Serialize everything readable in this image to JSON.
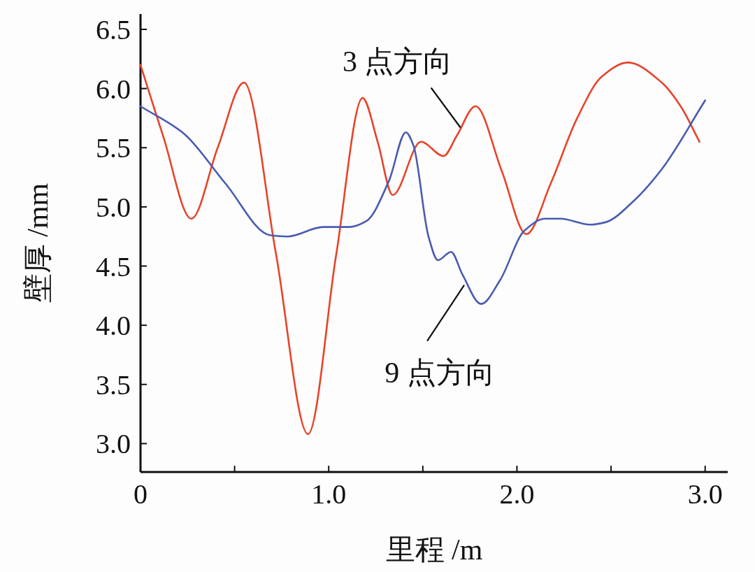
{
  "chart_data": {
    "type": "line",
    "xlabel": "里程 /m",
    "ylabel": "壁厚 /mm",
    "xlim": [
      0,
      3.12
    ],
    "ylim": [
      2.76,
      6.63
    ],
    "xticks": [
      0,
      {
        "value": 0.5,
        "label": null
      },
      {
        "value": 1,
        "label": "1.0"
      },
      {
        "value": 1.5,
        "label": null
      },
      {
        "value": 2,
        "label": "2.0"
      },
      {
        "value": 2.5,
        "label": null
      },
      {
        "value": 3,
        "label": "3.0"
      }
    ],
    "yticks": [
      {
        "value": 3,
        "label": "3.0"
      },
      3.5,
      {
        "value": 4,
        "label": "4.0"
      },
      4.5,
      {
        "value": 5,
        "label": "5.0"
      },
      5.5,
      {
        "value": 6,
        "label": "6.0"
      },
      6.5
    ],
    "grid": false,
    "marker": "none",
    "line_style": "solid",
    "series": [
      {
        "color": "#e8432a",
        "x": [
          0,
          0.12,
          0.27,
          0.41,
          0.55,
          0.72,
          0.89,
          1.04,
          1.18,
          1.26,
          1.34,
          1.49,
          1.61,
          1.68,
          1.78,
          1.92,
          2.05,
          2.18,
          2.32,
          2.45,
          2.59,
          2.77,
          2.87,
          2.97
        ],
        "values": [
          6.2,
          5.6,
          4.9,
          5.5,
          6.05,
          4.6,
          3.08,
          4.6,
          5.92,
          5.55,
          5.1,
          5.55,
          5.43,
          5.6,
          5.85,
          5.3,
          4.77,
          5.2,
          5.75,
          6.1,
          6.22,
          6.05,
          5.85,
          5.55
        ]
      },
      {
        "color": "#4a5bb0",
        "x": [
          0,
          0.23,
          0.45,
          0.69,
          0.78,
          0.97,
          1.11,
          1.2,
          1.32,
          1.41,
          1.45,
          1.53,
          1.58,
          1.65,
          1.71,
          1.81,
          1.91,
          2.04,
          2.15,
          2.23,
          2.39,
          2.47,
          2.62,
          2.77,
          3.0
        ],
        "values": [
          5.85,
          5.62,
          5.2,
          4.76,
          4.75,
          4.83,
          4.83,
          4.88,
          5.22,
          5.63,
          5.52,
          4.75,
          4.55,
          4.62,
          4.43,
          4.18,
          4.38,
          4.8,
          4.9,
          4.9,
          4.85,
          4.87,
          5.05,
          5.32,
          5.9
        ]
      }
    ],
    "annotations": [
      {
        "text": "3 点方向",
        "x": 1.7,
        "y": 5.67
      },
      {
        "text": "9 点方向",
        "x": 1.72,
        "y": 4.34
      }
    ]
  }
}
